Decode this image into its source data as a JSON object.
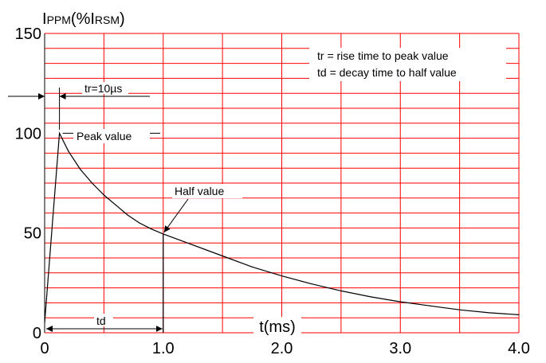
{
  "chart_data": {
    "type": "line",
    "title": "",
    "ylabel_main": "I",
    "ylabel_sub1": "PPM",
    "ylabel_mid": "(%I",
    "ylabel_sub2": "RSM",
    "ylabel_close": ")",
    "xlabel": "t(ms)",
    "xlim": [
      0,
      4.0
    ],
    "ylim": [
      0,
      150
    ],
    "x_ticks": [
      "0",
      "1.0",
      "2.0",
      "3.0",
      "4.0"
    ],
    "y_ticks": [
      "0",
      "50",
      "100",
      "150"
    ],
    "grid": true,
    "grid_color": "#ff0000",
    "curve_color": "#000000",
    "series": [
      {
        "x": [
          0,
          0.125,
          0.2,
          0.3,
          0.4,
          0.5,
          0.6,
          0.7,
          0.8,
          0.9,
          1.0,
          1.25,
          1.5,
          1.75,
          2.0,
          2.25,
          2.5,
          2.75,
          3.0,
          3.25,
          3.5,
          3.75,
          4.0
        ],
        "y": [
          5,
          100,
          91,
          82,
          75,
          69,
          64,
          59,
          55,
          52,
          49.5,
          44,
          38.5,
          33,
          28.5,
          24.5,
          21,
          18,
          15.5,
          13.5,
          11.5,
          10,
          9
        ]
      }
    ],
    "annotations": {
      "tr_label": "tr=10µs",
      "peak_label": "Peak value",
      "half_label": "Half value",
      "td_label": "td",
      "legend_line1": "tr = rise time to peak value",
      "legend_line2": "td = decay time to half value"
    }
  }
}
